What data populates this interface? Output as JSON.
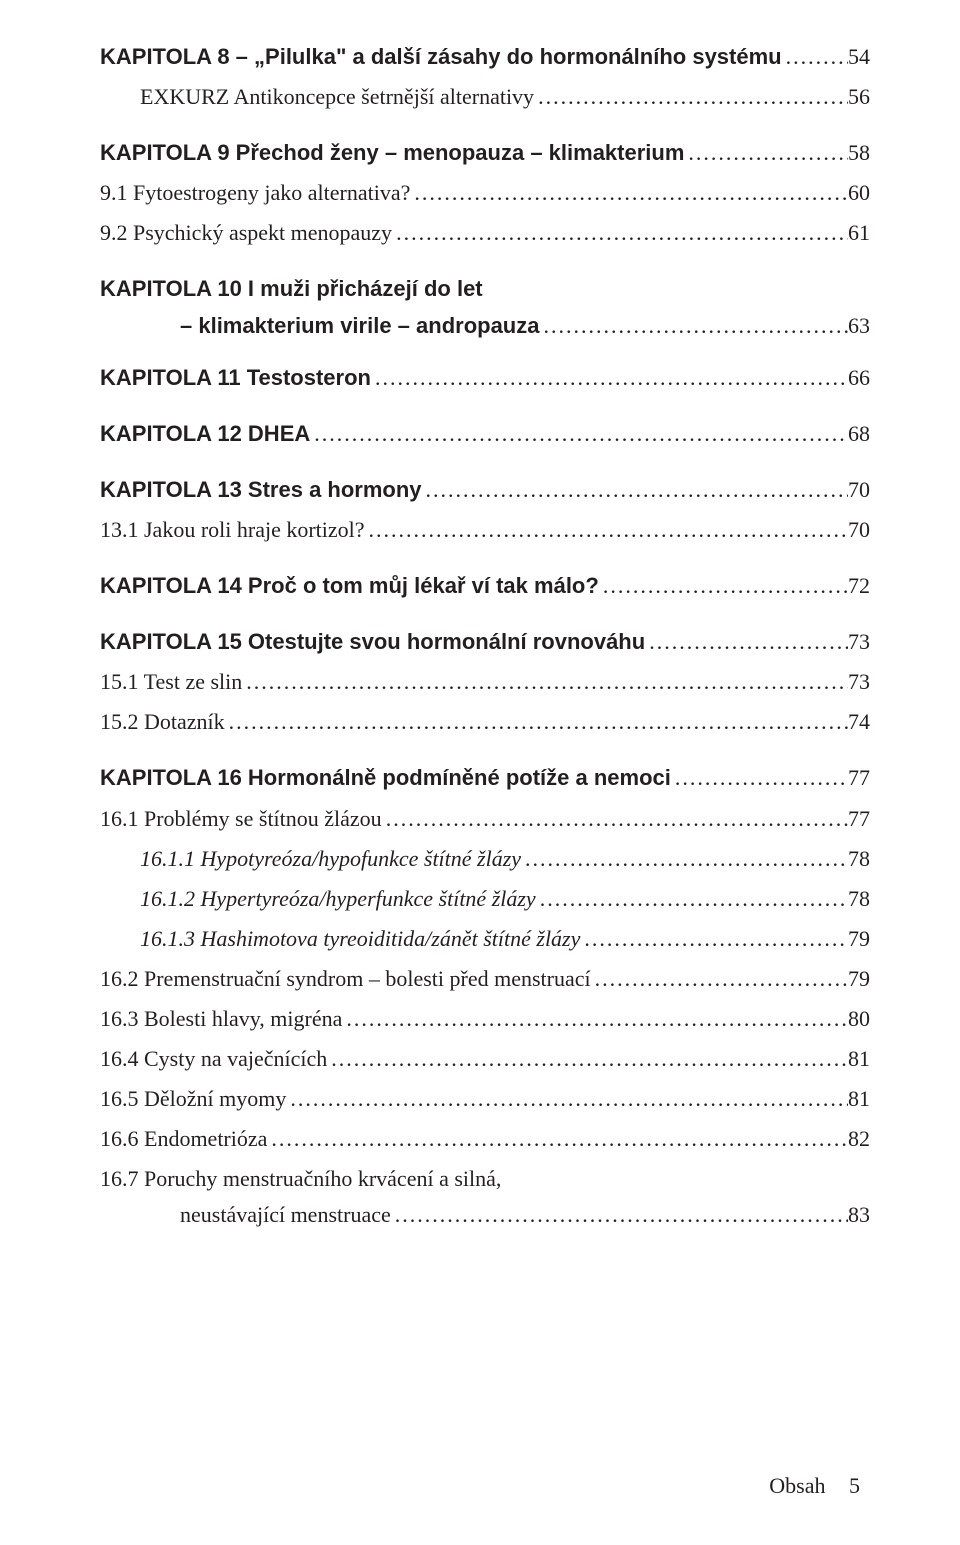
{
  "page": {
    "footer_label": "Obsah",
    "footer_page": "5"
  },
  "toc": [
    {
      "label": "KAPITOLA 8 – „Pilulka\" a další zásahy do hormonálního systému",
      "page": "54",
      "bold": true,
      "gapAfter": false
    },
    {
      "label": "EXKURZ Antikoncepce šetrnější alternativy",
      "page": "56",
      "indent": 1,
      "gapAfter": true
    },
    {
      "label": "KAPITOLA 9 Přechod ženy – menopauza – klimakterium",
      "page": "58",
      "bold": true
    },
    {
      "label": "9.1 Fytoestrogeny jako alternativa?",
      "page": "60"
    },
    {
      "label": "9.2 Psychický aspekt menopauzy",
      "page": "61",
      "gapAfter": true
    },
    {
      "label": "KAPITOLA 10 I muži přicházejí do let",
      "bold": true,
      "noPage": true
    },
    {
      "label": "– klimakterium virile – andropauza",
      "page": "63",
      "bold": true,
      "indent": 2,
      "gapAfter": true,
      "wrapLine": true
    },
    {
      "label": "KAPITOLA 11 Testosteron",
      "page": "66",
      "bold": true,
      "gapAfter": true
    },
    {
      "label": "KAPITOLA 12 DHEA",
      "page": "68",
      "bold": true,
      "gapAfter": true
    },
    {
      "label": "KAPITOLA 13 Stres a hormony",
      "page": "70",
      "bold": true
    },
    {
      "label": "13.1 Jakou roli hraje kortizol?",
      "page": "70",
      "gapAfter": true
    },
    {
      "label": "KAPITOLA 14 Proč o tom můj lékař ví tak málo?",
      "page": "72",
      "bold": true,
      "gapAfter": true
    },
    {
      "label": "KAPITOLA 15 Otestujte svou hormonální rovnováhu",
      "page": "73",
      "bold": true
    },
    {
      "label": "15.1 Test ze slin",
      "page": "73"
    },
    {
      "label": "15.2 Dotazník",
      "page": "74",
      "gapAfter": true
    },
    {
      "label": "KAPITOLA 16 Hormonálně podmíněné potíže a nemoci",
      "page": "77",
      "bold": true
    },
    {
      "label": "16.1 Problémy se štítnou žlázou",
      "page": "77"
    },
    {
      "label": "16.1.1 Hypotyreóza/hypofunkce štítné žlázy",
      "page": "78",
      "indent": 1,
      "italic": true
    },
    {
      "label": "16.1.2 Hypertyreóza/hyperfunkce štítné žlázy",
      "page": "78",
      "indent": 1,
      "italic": true
    },
    {
      "label": "16.1.3 Hashimotova tyreoiditida/zánět štítné žlázy",
      "page": "79",
      "indent": 1,
      "italic": true
    },
    {
      "label": "16.2 Premenstruační syndrom – bolesti před menstruací",
      "page": "79"
    },
    {
      "label": "16.3 Bolesti hlavy, migréna",
      "page": "80"
    },
    {
      "label": "16.4 Cysty na vaječnících",
      "page": "81"
    },
    {
      "label": "16.5 Děložní myomy",
      "page": "81"
    },
    {
      "label": "16.6 Endometrióza",
      "page": "82"
    },
    {
      "label": "16.7 Poruchy menstruačního krvácení a silná,",
      "noPage": true
    },
    {
      "label": "neustávající menstruace",
      "page": "83",
      "indent": 1,
      "wrapLine": true
    }
  ]
}
